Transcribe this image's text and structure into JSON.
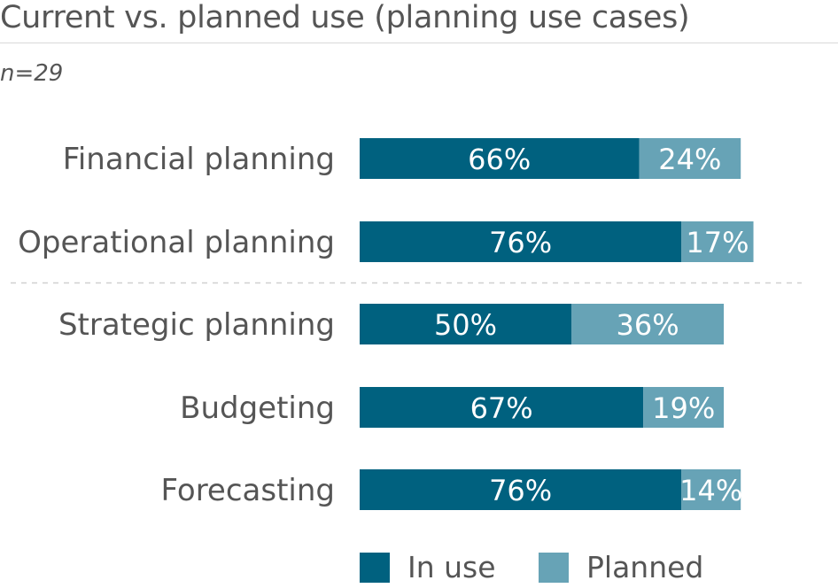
{
  "title": "Current vs. planned use (planning use cases)",
  "subtitle": "n=29",
  "chart_data": {
    "type": "bar",
    "orientation": "horizontal",
    "stacked": true,
    "categories": [
      "Financial planning",
      "Operational planning",
      "Strategic planning",
      "Budgeting",
      "Forecasting"
    ],
    "series": [
      {
        "name": "In use",
        "values": [
          66,
          76,
          50,
          67,
          76
        ],
        "color": "#00617f"
      },
      {
        "name": "Planned",
        "values": [
          24,
          17,
          36,
          19,
          14
        ],
        "color": "#67a3b6"
      }
    ],
    "value_labels_suffix": "%",
    "legend": "bottom",
    "grid": false,
    "separator_after_index": 1
  }
}
